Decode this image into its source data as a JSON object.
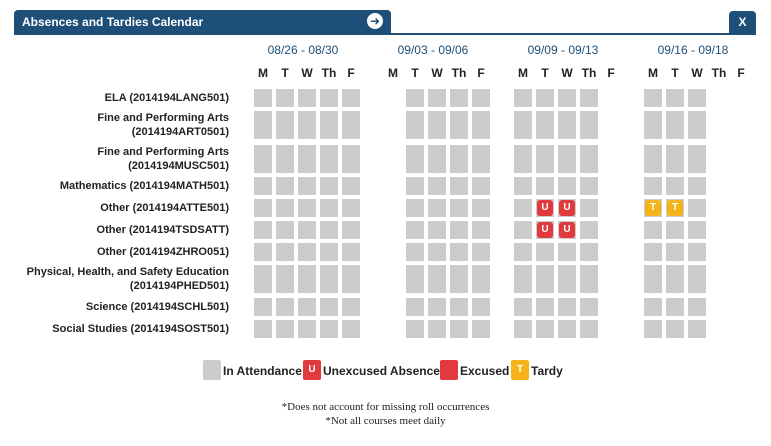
{
  "header": {
    "title": "Absences and Tardies Calendar",
    "close_label": "X"
  },
  "weeks": [
    "08/26 - 08/30",
    "09/03 - 09/06",
    "09/09 - 09/13",
    "09/16 - 09/18"
  ],
  "days": [
    "M",
    "T",
    "W",
    "Th",
    "F"
  ],
  "courses": [
    {
      "line1": "ELA (2014194LANG501)",
      "line2": ""
    },
    {
      "line1": "Fine and Performing Arts",
      "line2": "(2014194ART0501)"
    },
    {
      "line1": "Fine and Performing Arts",
      "line2": "(2014194MUSC501)"
    },
    {
      "line1": "Mathematics (2014194MATH501)",
      "line2": ""
    },
    {
      "line1": "Other (2014194ATTE501)",
      "line2": ""
    },
    {
      "line1": "Other (2014194TSDSATT)",
      "line2": ""
    },
    {
      "line1": "Other (2014194ZHRO051)",
      "line2": ""
    },
    {
      "line1": "Physical, Health, and Safety Education",
      "line2": "(2014194PHED501)"
    },
    {
      "line1": "Science (2014194SCHL501)",
      "line2": ""
    },
    {
      "line1": "Social Studies (2014194SOST501)",
      "line2": ""
    }
  ],
  "week_days_present": [
    [
      0,
      1,
      2,
      3,
      4
    ],
    [
      1,
      2,
      3,
      4
    ],
    [
      0,
      1,
      2,
      3
    ],
    [
      0,
      1,
      2
    ]
  ],
  "marks": [
    {
      "course": 4,
      "week": 2,
      "day": 1,
      "type": "unexcused",
      "label": "U"
    },
    {
      "course": 4,
      "week": 2,
      "day": 2,
      "type": "unexcused",
      "label": "U"
    },
    {
      "course": 5,
      "week": 2,
      "day": 1,
      "type": "unexcused",
      "label": "U"
    },
    {
      "course": 5,
      "week": 2,
      "day": 2,
      "type": "unexcused",
      "label": "U"
    },
    {
      "course": 4,
      "week": 3,
      "day": 0,
      "type": "tardy",
      "label": "T"
    },
    {
      "course": 4,
      "week": 3,
      "day": 1,
      "type": "tardy",
      "label": "T"
    }
  ],
  "legend": {
    "attendance": {
      "label": "In Attendance",
      "color": "#cccccc"
    },
    "unexcused": {
      "label": "Unexcused Absence",
      "symbol": "U",
      "color": "#e03a3e"
    },
    "excused": {
      "label": "Excused",
      "color": "#e03a3e"
    },
    "tardy": {
      "label": "Tardy",
      "symbol": "T",
      "color": "#f6b319"
    }
  },
  "notes": [
    "*Does not account for missing roll occurrences",
    "*Not all courses meet daily"
  ]
}
